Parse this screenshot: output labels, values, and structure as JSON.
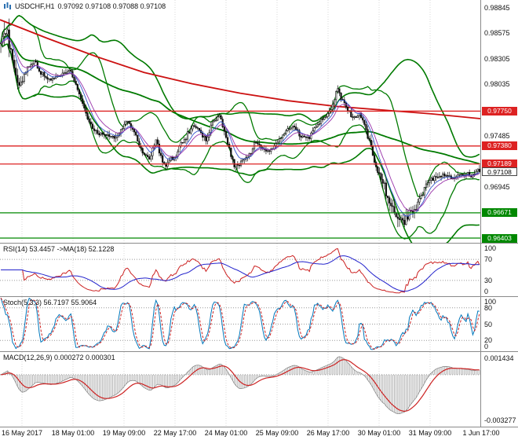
{
  "header": {
    "symbol": "USDCHF,H1",
    "ohlc": "0.97092 0.97108 0.97088 0.97108"
  },
  "chart_data": {
    "type": "candlestick",
    "symbol": "USDCHF",
    "timeframe": "H1",
    "bars": 288,
    "y_range": [
      0.96353,
      0.98929
    ],
    "x_labels": [
      "16 May 2017",
      "18 May 01:00",
      "19 May 09:00",
      "22 May 17:00",
      "24 May 01:00",
      "25 May 09:00",
      "26 May 17:00",
      "30 May 01:00",
      "31 May 09:00",
      "1 Jun 17:00"
    ],
    "y_axis": {
      "plain_ticks": [
        0.98845,
        0.98575,
        0.98305,
        0.98035,
        0.97485,
        0.96945
      ],
      "current_price": 0.97108,
      "resistance_levels": [
        0.9775,
        0.9738,
        0.97189
      ],
      "support_levels": [
        0.96671,
        0.96403
      ]
    },
    "price_path_anchors": [
      [
        0.0,
        0.9846
      ],
      [
        0.008,
        0.9856
      ],
      [
        0.02,
        0.9838
      ],
      [
        0.04,
        0.9803
      ],
      [
        0.055,
        0.9824
      ],
      [
        0.07,
        0.983
      ],
      [
        0.085,
        0.9816
      ],
      [
        0.105,
        0.981
      ],
      [
        0.125,
        0.9818
      ],
      [
        0.145,
        0.9818
      ],
      [
        0.165,
        0.9797
      ],
      [
        0.185,
        0.9764
      ],
      [
        0.205,
        0.975
      ],
      [
        0.225,
        0.9752
      ],
      [
        0.245,
        0.9752
      ],
      [
        0.262,
        0.9768
      ],
      [
        0.275,
        0.976
      ],
      [
        0.295,
        0.973
      ],
      [
        0.31,
        0.9722
      ],
      [
        0.325,
        0.9744
      ],
      [
        0.34,
        0.972
      ],
      [
        0.355,
        0.9726
      ],
      [
        0.37,
        0.9734
      ],
      [
        0.385,
        0.9748
      ],
      [
        0.4,
        0.9762
      ],
      [
        0.415,
        0.9756
      ],
      [
        0.43,
        0.9746
      ],
      [
        0.445,
        0.9768
      ],
      [
        0.458,
        0.9772
      ],
      [
        0.47,
        0.975
      ],
      [
        0.487,
        0.972
      ],
      [
        0.5,
        0.9718
      ],
      [
        0.515,
        0.9726
      ],
      [
        0.532,
        0.9743
      ],
      [
        0.548,
        0.9736
      ],
      [
        0.562,
        0.9727
      ],
      [
        0.578,
        0.974
      ],
      [
        0.595,
        0.9752
      ],
      [
        0.612,
        0.9758
      ],
      [
        0.628,
        0.9748
      ],
      [
        0.645,
        0.975
      ],
      [
        0.66,
        0.9762
      ],
      [
        0.675,
        0.9768
      ],
      [
        0.69,
        0.9778
      ],
      [
        0.703,
        0.98
      ],
      [
        0.712,
        0.9788
      ],
      [
        0.722,
        0.978
      ],
      [
        0.735,
        0.9772
      ],
      [
        0.75,
        0.977
      ],
      [
        0.765,
        0.9755
      ],
      [
        0.78,
        0.9725
      ],
      [
        0.795,
        0.9705
      ],
      [
        0.81,
        0.9685
      ],
      [
        0.825,
        0.9662
      ],
      [
        0.842,
        0.9652
      ],
      [
        0.858,
        0.9668
      ],
      [
        0.875,
        0.9682
      ],
      [
        0.892,
        0.9696
      ],
      [
        0.91,
        0.9703
      ],
      [
        0.928,
        0.9708
      ],
      [
        0.945,
        0.9705
      ],
      [
        0.962,
        0.9709
      ],
      [
        0.98,
        0.9706
      ],
      [
        1.0,
        0.9711
      ]
    ],
    "slow_ma_red_anchors": [
      [
        0.0,
        0.9872
      ],
      [
        0.1,
        0.9852
      ],
      [
        0.2,
        0.9833
      ],
      [
        0.3,
        0.9816
      ],
      [
        0.4,
        0.9804
      ],
      [
        0.5,
        0.9794
      ],
      [
        0.6,
        0.9786
      ],
      [
        0.7,
        0.978
      ],
      [
        0.8,
        0.9776
      ],
      [
        0.9,
        0.9772
      ],
      [
        1.0,
        0.9767
      ]
    ],
    "indicators": {
      "rsi": {
        "label": "RSI(14) 53.4457  ->MA(18) 52.1228",
        "period": 14,
        "ma_period": 18,
        "value": 53.4457,
        "ma_value": 52.1228,
        "levels": [
          70,
          30
        ],
        "scale_ticks": [
          100,
          70,
          30,
          0
        ]
      },
      "stoch": {
        "label": "Stoch(5,3,3) 56.7197 55.9064",
        "k": 5,
        "d": 3,
        "slowing": 3,
        "value": 56.7197,
        "signal_value": 55.9064,
        "levels": [
          80,
          50,
          20
        ],
        "scale_ticks": [
          100,
          80,
          50,
          20,
          0
        ]
      },
      "macd": {
        "label": "MACD(12,26,9) 0.000272 0.000301",
        "fast": 12,
        "slow": 26,
        "signal": 9,
        "value": 0.000272,
        "signal_value": 0.000301,
        "scale_max": 0.001434,
        "scale_min": -0.003277,
        "axis_labels": [
          "0.001434",
          "-0.003277"
        ]
      }
    },
    "colors": {
      "bands": "#007a00",
      "slow_ma": "#cc1111",
      "fast_ma1": "#3355cc",
      "fast_ma2": "#9933aa",
      "resistance": "#dd2222",
      "support": "#008800",
      "candle_up": "#ffffff",
      "candle_down": "#111111",
      "grid": "#d8d8d8",
      "rsi_line": "#cc2222",
      "rsi_ma": "#2222cc",
      "stoch_k": "#0077bb",
      "stoch_d": "#cc2222",
      "macd_hist": "#b0b0b0",
      "macd_signal": "#cc2222"
    }
  }
}
